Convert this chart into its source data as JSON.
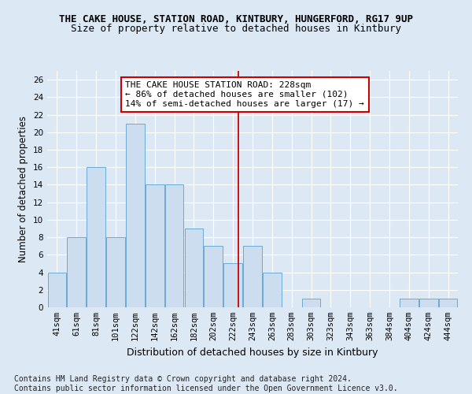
{
  "title": "THE CAKE HOUSE, STATION ROAD, KINTBURY, HUNGERFORD, RG17 9UP",
  "subtitle": "Size of property relative to detached houses in Kintbury",
  "xlabel": "Distribution of detached houses by size in Kintbury",
  "ylabel": "Number of detached properties",
  "bar_values": [
    4,
    8,
    16,
    8,
    21,
    14,
    14,
    9,
    7,
    5,
    7,
    4,
    0,
    1,
    0,
    0,
    0,
    0,
    1,
    1,
    1
  ],
  "bar_labels": [
    "41sqm",
    "61sqm",
    "81sqm",
    "101sqm",
    "122sqm",
    "142sqm",
    "162sqm",
    "182sqm",
    "202sqm",
    "222sqm",
    "243sqm",
    "263sqm",
    "283sqm",
    "303sqm",
    "323sqm",
    "343sqm",
    "363sqm",
    "384sqm",
    "404sqm",
    "424sqm",
    "444sqm"
  ],
  "bar_color": "#ccddf0",
  "bar_edge_color": "#6aaad4",
  "background_color": "#dde8f5",
  "grid_color": "#ffffff",
  "vline_color": "#cc0000",
  "annotation_text": "THE CAKE HOUSE STATION ROAD: 228sqm\n← 86% of detached houses are smaller (102)\n14% of semi-detached houses are larger (17) →",
  "annotation_box_color": "#ffffff",
  "annotation_box_edge": "#cc0000",
  "ylim": [
    0,
    27
  ],
  "yticks": [
    0,
    2,
    4,
    6,
    8,
    10,
    12,
    14,
    16,
    18,
    20,
    22,
    24,
    26
  ],
  "footnote": "Contains HM Land Registry data © Crown copyright and database right 2024.\nContains public sector information licensed under the Open Government Licence v3.0.",
  "title_fontsize": 9,
  "subtitle_fontsize": 9,
  "xlabel_fontsize": 9,
  "ylabel_fontsize": 8.5,
  "tick_fontsize": 7.5,
  "annotation_fontsize": 8,
  "footnote_fontsize": 7
}
